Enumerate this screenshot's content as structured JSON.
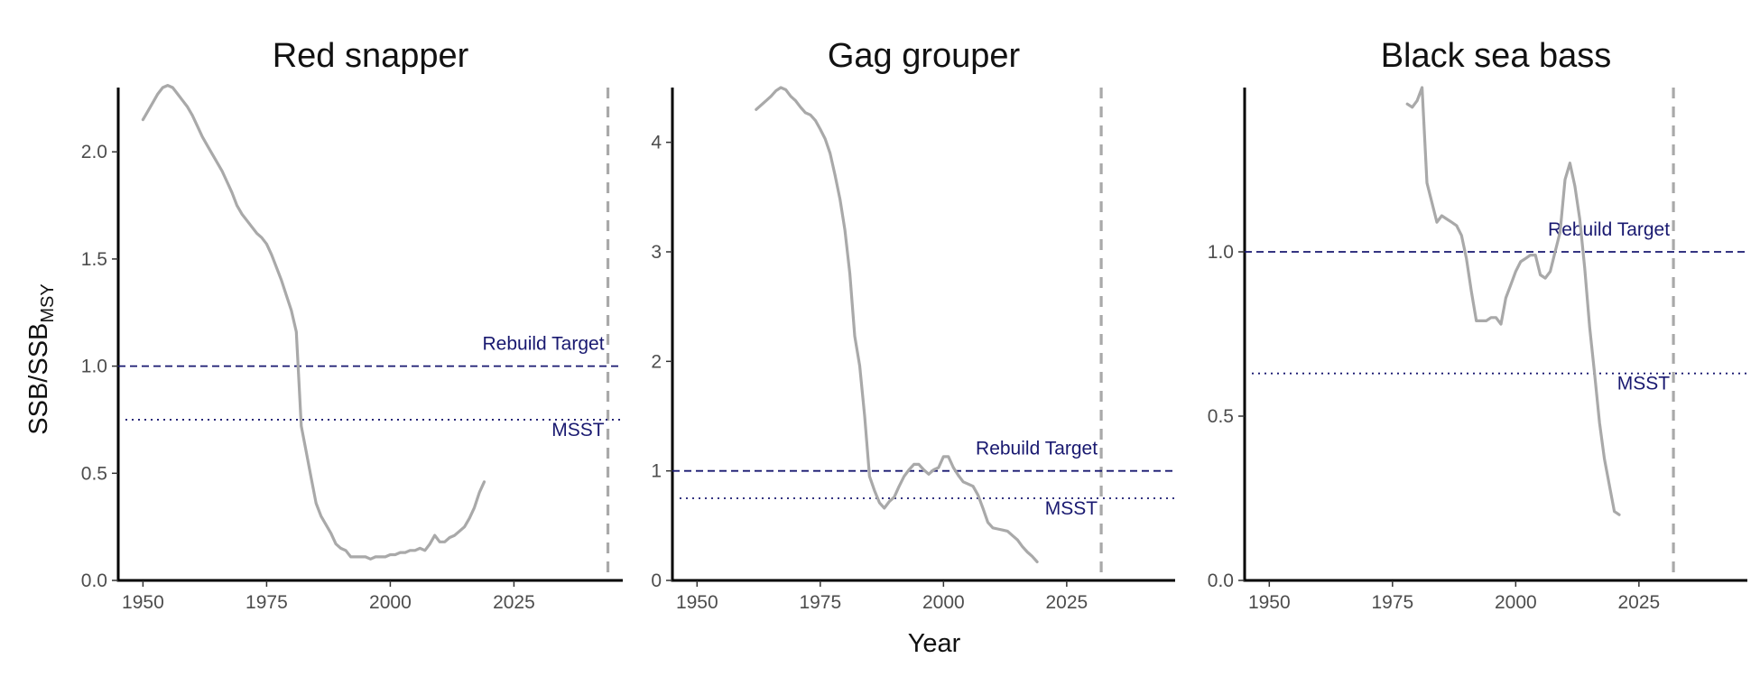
{
  "figure": {
    "xlabel": "Year",
    "ylabel_main": "SSB/SSB",
    "ylabel_sub": "MSY"
  },
  "colors": {
    "series": "#a9a9a9",
    "reference": "#191970",
    "vline": "#a9a9a9",
    "axis": "#000000"
  },
  "chart_data": [
    {
      "type": "line",
      "title": "Red snapper",
      "xlim": [
        1945,
        2047
      ],
      "ylim": [
        0,
        2.3
      ],
      "xticks": [
        1950,
        1975,
        2000,
        2025
      ],
      "xtick_labels": [
        "1950",
        "1975",
        "2000",
        "2025"
      ],
      "yticks": [
        0,
        0.5,
        1,
        1.5,
        2
      ],
      "ytick_labels": [
        "0.0",
        "0.5",
        "1.0",
        "1.5",
        "2.0"
      ],
      "vline_x": 2044,
      "rebuild_target": {
        "label": "Rebuild Target",
        "y": 1.0
      },
      "msst": {
        "label": "MSST",
        "y": 0.75
      },
      "series": [
        {
          "x": [
            1950,
            1951,
            1952,
            1953,
            1954,
            1955,
            1956,
            1957,
            1958,
            1959,
            1960,
            1961,
            1962,
            1963,
            1964,
            1965,
            1966,
            1967,
            1968,
            1969,
            1970,
            1971,
            1972,
            1973,
            1974,
            1975,
            1976,
            1977,
            1978,
            1979,
            1980,
            1981,
            1982,
            1983,
            1984,
            1985,
            1986,
            1987,
            1988,
            1989,
            1990,
            1991,
            1992,
            1993,
            1994,
            1995,
            1996,
            1997,
            1998,
            1999,
            2000,
            2001,
            2002,
            2003,
            2004,
            2005,
            2006,
            2007,
            2008,
            2009,
            2010,
            2011,
            2012,
            2013,
            2014,
            2015,
            2016,
            2017,
            2018,
            2019
          ],
          "values": [
            2.15,
            2.19,
            2.23,
            2.27,
            2.3,
            2.31,
            2.3,
            2.27,
            2.24,
            2.21,
            2.17,
            2.12,
            2.07,
            2.03,
            1.99,
            1.95,
            1.91,
            1.86,
            1.81,
            1.75,
            1.71,
            1.68,
            1.65,
            1.62,
            1.6,
            1.57,
            1.52,
            1.46,
            1.4,
            1.33,
            1.26,
            1.16,
            0.72,
            0.6,
            0.48,
            0.36,
            0.3,
            0.26,
            0.22,
            0.17,
            0.15,
            0.14,
            0.11,
            0.11,
            0.11,
            0.11,
            0.1,
            0.11,
            0.11,
            0.11,
            0.12,
            0.12,
            0.13,
            0.13,
            0.14,
            0.14,
            0.15,
            0.14,
            0.17,
            0.21,
            0.18,
            0.18,
            0.2,
            0.21,
            0.23,
            0.25,
            0.29,
            0.34,
            0.41,
            0.46
          ]
        }
      ]
    },
    {
      "type": "line",
      "title": "Gag grouper",
      "xlim": [
        1945,
        2047
      ],
      "ylim": [
        0,
        4.5
      ],
      "xticks": [
        1950,
        1975,
        2000,
        2025
      ],
      "xtick_labels": [
        "1950",
        "1975",
        "2000",
        "2025"
      ],
      "yticks": [
        0,
        1,
        2,
        3,
        4
      ],
      "ytick_labels": [
        "0",
        "1",
        "2",
        "3",
        "4"
      ],
      "vline_x": 2032,
      "rebuild_target": {
        "label": "Rebuild Target",
        "y": 1.0
      },
      "msst": {
        "label": "MSST",
        "y": 0.75
      },
      "series": [
        {
          "x": [
            1962,
            1963,
            1964,
            1965,
            1966,
            1967,
            1968,
            1969,
            1970,
            1971,
            1972,
            1973,
            1974,
            1975,
            1976,
            1977,
            1978,
            1979,
            1980,
            1981,
            1982,
            1983,
            1984,
            1985,
            1986,
            1987,
            1988,
            1989,
            1990,
            1991,
            1992,
            1993,
            1994,
            1995,
            1996,
            1997,
            1998,
            1999,
            2000,
            2001,
            2002,
            2003,
            2004,
            2005,
            2006,
            2007,
            2008,
            2009,
            2010,
            2011,
            2012,
            2013,
            2014,
            2015,
            2016,
            2017,
            2018,
            2019
          ],
          "values": [
            4.3,
            4.34,
            4.38,
            4.42,
            4.47,
            4.5,
            4.48,
            4.42,
            4.38,
            4.32,
            4.27,
            4.25,
            4.2,
            4.12,
            4.03,
            3.9,
            3.7,
            3.48,
            3.2,
            2.8,
            2.23,
            1.96,
            1.5,
            0.95,
            0.82,
            0.71,
            0.66,
            0.72,
            0.76,
            0.86,
            0.95,
            1.01,
            1.06,
            1.06,
            1.01,
            0.97,
            1.01,
            1.03,
            1.13,
            1.13,
            1.03,
            0.96,
            0.9,
            0.88,
            0.86,
            0.78,
            0.66,
            0.53,
            0.48,
            0.47,
            0.46,
            0.45,
            0.41,
            0.37,
            0.31,
            0.26,
            0.22,
            0.17
          ]
        }
      ]
    },
    {
      "type": "line",
      "title": "Black sea bass",
      "xlim": [
        1945,
        2047
      ],
      "ylim": [
        0,
        1.5
      ],
      "xticks": [
        1950,
        1975,
        2000,
        2025
      ],
      "xtick_labels": [
        "1950",
        "1975",
        "2000",
        "2025"
      ],
      "yticks": [
        0,
        0.5,
        1
      ],
      "ytick_labels": [
        "0.0",
        "0.5",
        "1.0"
      ],
      "vline_x": 2032,
      "rebuild_target": {
        "label": "Rebuild Target",
        "y": 1.0
      },
      "msst": {
        "label": "MSST",
        "y": 0.63
      },
      "series": [
        {
          "x": [
            1978,
            1979,
            1980,
            1981,
            1982,
            1983,
            1984,
            1985,
            1986,
            1987,
            1988,
            1989,
            1990,
            1991,
            1992,
            1993,
            1994,
            1995,
            1996,
            1997,
            1998,
            1999,
            2000,
            2001,
            2002,
            2003,
            2004,
            2005,
            2006,
            2007,
            2008,
            2009,
            2010,
            2011,
            2012,
            2013,
            2014,
            2015,
            2016,
            2017,
            2018,
            2019,
            2020,
            2021
          ],
          "values": [
            1.45,
            1.44,
            1.46,
            1.5,
            1.21,
            1.15,
            1.09,
            1.11,
            1.1,
            1.09,
            1.08,
            1.05,
            0.98,
            0.88,
            0.79,
            0.79,
            0.79,
            0.8,
            0.8,
            0.78,
            0.86,
            0.9,
            0.94,
            0.97,
            0.98,
            0.99,
            0.99,
            0.93,
            0.92,
            0.94,
            1.0,
            1.06,
            1.22,
            1.27,
            1.2,
            1.1,
            0.95,
            0.77,
            0.63,
            0.48,
            0.37,
            0.29,
            0.21,
            0.2
          ]
        }
      ]
    }
  ]
}
